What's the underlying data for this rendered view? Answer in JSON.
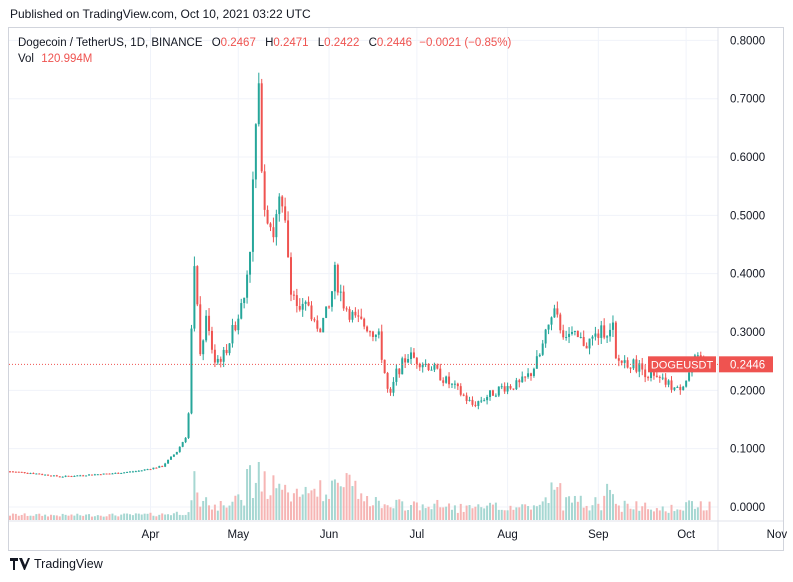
{
  "published": "Published on TradingView.com, Oct 10, 2021 03:22 UTC",
  "footer_brand": "TradingView",
  "legend": {
    "symbol": "Dogecoin / TetherUS, 1D, BINANCE",
    "open_label": "O",
    "open": "0.2467",
    "high_label": "H",
    "high": "0.2471",
    "low_label": "L",
    "low": "0.2422",
    "close_label": "C",
    "close": "0.2446",
    "change": "−0.0021 (−0.85%)",
    "vol_label": "Vol",
    "vol": "120.994M"
  },
  "colors": {
    "up": "#26a69a",
    "down": "#ef5350",
    "vol_up": "#a6d7d2",
    "vol_down": "#f6b5b4",
    "grid": "#f0f3fa"
  },
  "chart_data": {
    "type": "candlestick",
    "y_ticks": [
      "0.0000",
      "0.1000",
      "0.2000",
      "0.3000",
      "0.4000",
      "0.5000",
      "0.6000",
      "0.7000",
      "0.8000"
    ],
    "ylim": [
      0,
      0.8
    ],
    "x_ticks": [
      "Apr",
      "May",
      "Jun",
      "Jul",
      "Aug",
      "Sep",
      "Oct",
      "Nov"
    ],
    "x_tick_dates": [
      "2021-04-01",
      "2021-05-01",
      "2021-06-01",
      "2021-07-01",
      "2021-08-01",
      "2021-09-01",
      "2021-10-01",
      "2021-11-01"
    ],
    "start_date": "2021-02-12",
    "last_price_label": "DOGEUSDT",
    "last_price": "0.2446",
    "close_path": [
      [
        "2021-02-12",
        0.061
      ],
      [
        "2021-02-20",
        0.058
      ],
      [
        "2021-03-01",
        0.052
      ],
      [
        "2021-03-10",
        0.055
      ],
      [
        "2021-03-20",
        0.058
      ],
      [
        "2021-03-28",
        0.062
      ],
      [
        "2021-04-05",
        0.07
      ],
      [
        "2021-04-10",
        0.095
      ],
      [
        "2021-04-13",
        0.12
      ],
      [
        "2021-04-14",
        0.16
      ],
      [
        "2021-04-15",
        0.3
      ],
      [
        "2021-04-16",
        0.4
      ],
      [
        "2021-04-17",
        0.35
      ],
      [
        "2021-04-18",
        0.26
      ],
      [
        "2021-04-20",
        0.32
      ],
      [
        "2021-04-23",
        0.25
      ],
      [
        "2021-04-26",
        0.26
      ],
      [
        "2021-04-29",
        0.3
      ],
      [
        "2021-05-03",
        0.36
      ],
      [
        "2021-05-05",
        0.45
      ],
      [
        "2021-05-07",
        0.65
      ],
      [
        "2021-05-08",
        0.7
      ],
      [
        "2021-05-09",
        0.6
      ],
      [
        "2021-05-10",
        0.52
      ],
      [
        "2021-05-13",
        0.47
      ],
      [
        "2021-05-15",
        0.52
      ],
      [
        "2021-05-17",
        0.48
      ],
      [
        "2021-05-19",
        0.38
      ],
      [
        "2021-05-22",
        0.33
      ],
      [
        "2021-05-25",
        0.35
      ],
      [
        "2021-05-28",
        0.3
      ],
      [
        "2021-06-01",
        0.34
      ],
      [
        "2021-06-03",
        0.4
      ],
      [
        "2021-06-06",
        0.35
      ],
      [
        "2021-06-10",
        0.32
      ],
      [
        "2021-06-14",
        0.31
      ],
      [
        "2021-06-18",
        0.29
      ],
      [
        "2021-06-21",
        0.2
      ],
      [
        "2021-06-22",
        0.19
      ],
      [
        "2021-06-24",
        0.23
      ],
      [
        "2021-06-28",
        0.26
      ],
      [
        "2021-07-02",
        0.25
      ],
      [
        "2021-07-06",
        0.24
      ],
      [
        "2021-07-10",
        0.22
      ],
      [
        "2021-07-15",
        0.2
      ],
      [
        "2021-07-20",
        0.175
      ],
      [
        "2021-07-25",
        0.19
      ],
      [
        "2021-07-30",
        0.205
      ],
      [
        "2021-08-05",
        0.21
      ],
      [
        "2021-08-09",
        0.23
      ],
      [
        "2021-08-12",
        0.26
      ],
      [
        "2021-08-15",
        0.31
      ],
      [
        "2021-08-17",
        0.33
      ],
      [
        "2021-08-20",
        0.3
      ],
      [
        "2021-08-24",
        0.29
      ],
      [
        "2021-08-28",
        0.28
      ],
      [
        "2021-09-02",
        0.3
      ],
      [
        "2021-09-06",
        0.31
      ],
      [
        "2021-09-07",
        0.25
      ],
      [
        "2021-09-10",
        0.25
      ],
      [
        "2021-09-15",
        0.24
      ],
      [
        "2021-09-20",
        0.22
      ],
      [
        "2021-09-25",
        0.21
      ],
      [
        "2021-09-28",
        0.2
      ],
      [
        "2021-10-01",
        0.22
      ],
      [
        "2021-10-04",
        0.25
      ],
      [
        "2021-10-07",
        0.25
      ],
      [
        "2021-10-09",
        0.2446
      ]
    ]
  }
}
